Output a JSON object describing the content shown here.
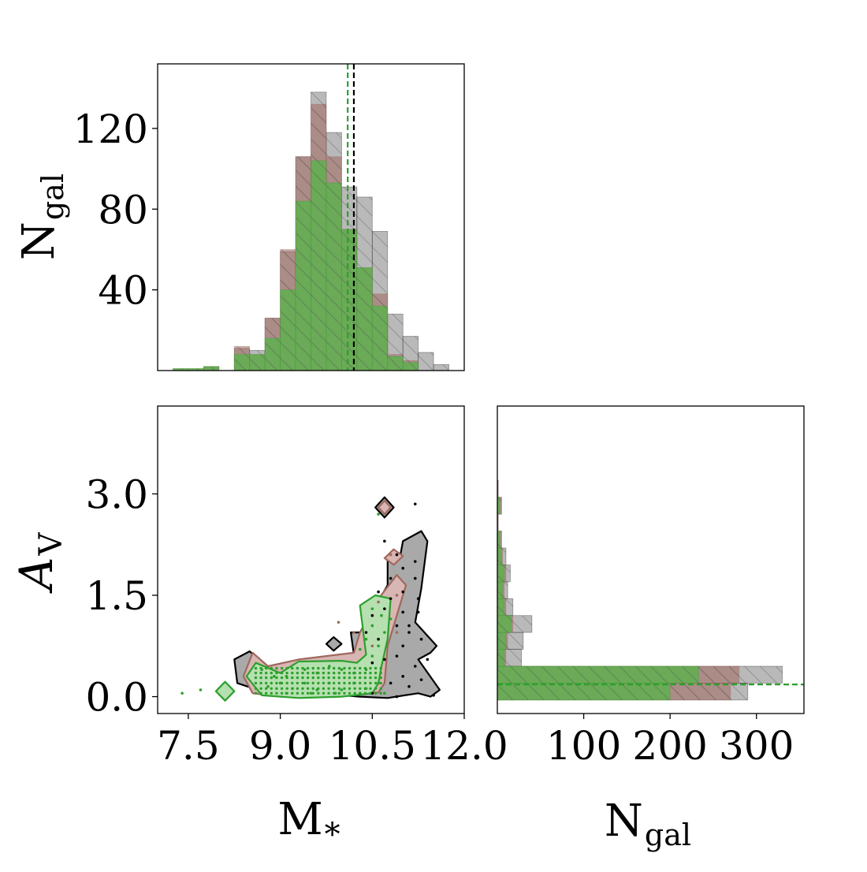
{
  "colors": {
    "all": "#7f7f7f",
    "all_line": "#000000",
    "brown": "#a0685e",
    "brown_fill": "#d8b6b3",
    "green": "#2ca02c",
    "green_fill": "#5faf4f",
    "green_contour_fill": "#b6e0b0",
    "dark_contour_fill": "#a9a9a9"
  },
  "chart_data": [
    {
      "type": "histogram",
      "panel": "M_star marginal",
      "xlim": [
        7.0,
        12.0
      ],
      "ylim": [
        0,
        152
      ],
      "ylabel": "N",
      "ylabel_sub": "gal",
      "yticks": [
        40,
        80,
        120
      ],
      "bin_edges": [
        7.25,
        7.5,
        7.75,
        8.0,
        8.25,
        8.5,
        8.75,
        9.0,
        9.25,
        9.5,
        9.75,
        10.0,
        10.25,
        10.5,
        10.75,
        11.0,
        11.25,
        11.5,
        11.75
      ],
      "series": [
        {
          "key": "all",
          "counts": [
            0,
            0,
            2,
            0,
            11,
            10,
            26,
            59,
            106,
            138,
            118,
            91,
            86,
            69,
            28,
            17,
            9,
            3
          ]
        },
        {
          "key": "brown",
          "counts": [
            1,
            1,
            2,
            0,
            12,
            8,
            26,
            60,
            106,
            132,
            106,
            70,
            51,
            38,
            8,
            5,
            0,
            0
          ]
        },
        {
          "key": "green",
          "counts": [
            1,
            1,
            2,
            0,
            8,
            8,
            16,
            40,
            84,
            104,
            93,
            70,
            51,
            32,
            7,
            4,
            0,
            0
          ]
        }
      ],
      "median_lines": [
        {
          "key": "all",
          "x": 10.2
        },
        {
          "key": "green",
          "x": 10.1
        }
      ]
    },
    {
      "type": "scatter",
      "panel": "A_V vs M_star",
      "xlim": [
        7.0,
        12.0
      ],
      "ylim": [
        -0.25,
        4.3
      ],
      "xticks": [
        "7.5",
        "9.0",
        "10.5",
        "12.0"
      ],
      "yticks": [
        "0.0",
        "1.5",
        "3.0"
      ],
      "xlabel": "M",
      "xlabel_sub": "*",
      "ylabel": "A",
      "ylabel_sub": "V",
      "contours": [
        {
          "key": "all",
          "polygon": [
            [
              8.25,
              0.55
            ],
            [
              8.5,
              0.67
            ],
            [
              8.8,
              0.43
            ],
            [
              9.3,
              0.53
            ],
            [
              10.0,
              0.55
            ],
            [
              10.2,
              0.62
            ],
            [
              10.15,
              0.95
            ],
            [
              10.3,
              0.95
            ],
            [
              10.5,
              1.25
            ],
            [
              10.75,
              1.65
            ],
            [
              10.75,
              2.05
            ],
            [
              10.95,
              2.05
            ],
            [
              11.0,
              2.3
            ],
            [
              11.3,
              2.45
            ],
            [
              11.4,
              2.3
            ],
            [
              11.3,
              1.6
            ],
            [
              11.2,
              1.1
            ],
            [
              11.55,
              0.75
            ],
            [
              11.45,
              0.65
            ],
            [
              11.25,
              0.55
            ],
            [
              11.6,
              0.1
            ],
            [
              11.45,
              0.0
            ],
            [
              11.25,
              0.05
            ],
            [
              10.75,
              -0.02
            ],
            [
              10.3,
              0.0
            ],
            [
              9.6,
              0.05
            ],
            [
              8.9,
              0.02
            ],
            [
              8.3,
              0.2
            ]
          ]
        },
        {
          "key": "brown",
          "polygon": [
            [
              8.4,
              0.3
            ],
            [
              8.55,
              0.65
            ],
            [
              8.8,
              0.45
            ],
            [
              9.3,
              0.55
            ],
            [
              10.2,
              0.65
            ],
            [
              10.3,
              0.95
            ],
            [
              10.6,
              1.45
            ],
            [
              10.9,
              1.8
            ],
            [
              11.05,
              1.65
            ],
            [
              10.9,
              1.2
            ],
            [
              10.75,
              0.75
            ],
            [
              10.7,
              0.2
            ],
            [
              10.6,
              0.06
            ],
            [
              10.0,
              0.05
            ],
            [
              9.0,
              0.0
            ],
            [
              8.55,
              0.05
            ]
          ]
        },
        {
          "key": "brown",
          "polygon": [
            [
              10.7,
              2.05
            ],
            [
              10.85,
              2.18
            ],
            [
              11.0,
              2.08
            ],
            [
              10.85,
              1.95
            ]
          ]
        },
        {
          "key": "green",
          "polygon": [
            [
              8.45,
              0.3
            ],
            [
              8.6,
              0.5
            ],
            [
              9.0,
              0.35
            ],
            [
              9.3,
              0.52
            ],
            [
              10.0,
              0.53
            ],
            [
              10.25,
              0.5
            ],
            [
              10.4,
              0.62
            ],
            [
              10.3,
              1.35
            ],
            [
              10.55,
              1.5
            ],
            [
              10.8,
              1.45
            ],
            [
              10.75,
              0.85
            ],
            [
              10.65,
              0.45
            ],
            [
              10.6,
              0.2
            ],
            [
              10.5,
              0.05
            ],
            [
              10.0,
              0.0
            ],
            [
              9.3,
              -0.02
            ],
            [
              8.7,
              0.02
            ]
          ]
        }
      ],
      "islands": [
        {
          "key": "all",
          "polygon": [
            [
              10.55,
              2.8
            ],
            [
              10.7,
              2.95
            ],
            [
              10.85,
              2.8
            ],
            [
              10.7,
              2.65
            ]
          ]
        },
        {
          "key": "brown",
          "polygon": [
            [
              10.6,
              2.8
            ],
            [
              10.7,
              2.9
            ],
            [
              10.8,
              2.8
            ],
            [
              10.7,
              2.7
            ]
          ]
        },
        {
          "key": "all",
          "polygon": [
            [
              9.75,
              0.78
            ],
            [
              9.87,
              0.88
            ],
            [
              10.0,
              0.78
            ],
            [
              9.87,
              0.68
            ]
          ]
        },
        {
          "key": "green",
          "polygon": [
            [
              7.95,
              0.08
            ],
            [
              8.1,
              0.22
            ],
            [
              8.25,
              0.08
            ],
            [
              8.1,
              -0.06
            ]
          ]
        }
      ],
      "points": {
        "all": [
          [
            11.2,
            2.85
          ],
          [
            10.7,
            2.3
          ],
          [
            10.9,
            2.1
          ],
          [
            11.2,
            2.0
          ],
          [
            11.0,
            1.9
          ],
          [
            10.8,
            1.75
          ],
          [
            11.2,
            1.75
          ],
          [
            10.6,
            1.55
          ],
          [
            11.0,
            1.55
          ],
          [
            11.25,
            1.45
          ],
          [
            10.7,
            1.3
          ],
          [
            11.0,
            1.25
          ],
          [
            11.25,
            1.25
          ],
          [
            10.5,
            1.2
          ],
          [
            10.9,
            1.05
          ],
          [
            11.1,
            0.95
          ],
          [
            11.3,
            0.85
          ],
          [
            10.4,
            0.95
          ],
          [
            10.6,
            0.85
          ],
          [
            11.0,
            0.75
          ],
          [
            10.5,
            0.5
          ],
          [
            10.7,
            0.55
          ],
          [
            10.9,
            0.6
          ],
          [
            11.2,
            0.45
          ],
          [
            11.0,
            0.3
          ],
          [
            11.3,
            0.25
          ],
          [
            10.8,
            0.2
          ],
          [
            11.5,
            0.02
          ],
          [
            10.9,
            0.0
          ],
          [
            10.5,
            0.05
          ],
          [
            11.4,
            0.55
          ],
          [
            11.1,
            0.15
          ],
          [
            10.8,
            1.45
          ],
          [
            11.1,
            1.05
          ]
        ],
        "brown": [
          [
            9.95,
            1.1
          ],
          [
            10.8,
            2.1
          ],
          [
            10.9,
            1.5
          ],
          [
            10.6,
            1.4
          ],
          [
            10.9,
            0.95
          ],
          [
            10.2,
            0.95
          ],
          [
            10.5,
            0.75
          ]
        ],
        "green": [
          [
            7.4,
            0.05
          ],
          [
            7.7,
            0.1
          ],
          [
            10.6,
            2.7
          ],
          [
            10.5,
            1.3
          ],
          [
            10.65,
            1.2
          ],
          [
            10.8,
            1.15
          ],
          [
            10.5,
            1.05
          ],
          [
            10.7,
            0.95
          ],
          [
            10.4,
            0.85
          ],
          [
            10.6,
            0.75
          ],
          [
            10.3,
            0.7
          ],
          [
            10.5,
            0.6
          ],
          [
            8.7,
            0.4
          ],
          [
            8.9,
            0.3
          ],
          [
            9.1,
            0.3
          ],
          [
            9.4,
            0.4
          ],
          [
            9.6,
            0.35
          ],
          [
            9.8,
            0.45
          ],
          [
            10.0,
            0.4
          ],
          [
            10.2,
            0.35
          ],
          [
            10.4,
            0.4
          ],
          [
            8.8,
            0.15
          ],
          [
            9.0,
            0.2
          ],
          [
            9.2,
            0.12
          ],
          [
            9.4,
            0.2
          ],
          [
            9.6,
            0.1
          ],
          [
            9.8,
            0.2
          ],
          [
            10.0,
            0.1
          ],
          [
            10.2,
            0.2
          ],
          [
            10.4,
            0.12
          ],
          [
            10.6,
            0.2
          ],
          [
            9.1,
            0.05
          ],
          [
            9.5,
            0.05
          ],
          [
            9.9,
            0.05
          ],
          [
            10.3,
            0.05
          ],
          [
            10.7,
            0.05
          ]
        ]
      },
      "dense_band": {
        "key": "green",
        "rows": [
          0.05,
          0.12,
          0.2,
          0.28,
          0.35,
          0.42
        ],
        "x_from": 8.6,
        "x_to": 10.7,
        "step": 0.085
      }
    },
    {
      "type": "histogram",
      "panel": "A_V marginal",
      "orientation": "horizontal",
      "xlim": [
        0,
        355
      ],
      "ylim": [
        -0.25,
        4.3
      ],
      "xticks": [
        100,
        200,
        300
      ],
      "xlabel": "N",
      "xlabel_sub": "gal",
      "bin_edges": [
        -0.05,
        0.2,
        0.45,
        0.7,
        0.95,
        1.2,
        1.45,
        1.7,
        1.95,
        2.2,
        2.45,
        2.7,
        2.95,
        3.2
      ],
      "series": [
        {
          "key": "all",
          "counts": [
            290,
            330,
            28,
            30,
            40,
            18,
            12,
            15,
            10,
            5,
            1,
            5,
            1
          ]
        },
        {
          "key": "brown",
          "counts": [
            270,
            280,
            10,
            12,
            18,
            10,
            8,
            10,
            6,
            4,
            1,
            4,
            1
          ]
        },
        {
          "key": "green",
          "counts": [
            200,
            233,
            8,
            10,
            16,
            8,
            6,
            8,
            5,
            3,
            0,
            3,
            0
          ]
        }
      ],
      "median_line": {
        "key": "green",
        "y": 0.18
      }
    }
  ]
}
